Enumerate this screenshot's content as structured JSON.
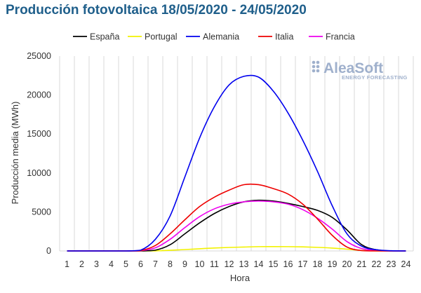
{
  "chart_data": {
    "type": "line",
    "title": "Producción fotovoltaica 18/05/2020 - 24/05/2020",
    "xlabel": "Hora",
    "ylabel": "Producción media (MWh)",
    "x": [
      1,
      2,
      3,
      4,
      5,
      6,
      7,
      8,
      9,
      10,
      11,
      12,
      13,
      14,
      15,
      16,
      17,
      18,
      19,
      20,
      21,
      22,
      23,
      24
    ],
    "ylim": [
      0,
      25000
    ],
    "yticks": [
      0,
      5000,
      10000,
      15000,
      20000,
      25000
    ],
    "grid": "vertical",
    "legend_position": "top",
    "series": [
      {
        "name": "España",
        "color": "#000000",
        "values": [
          0,
          0,
          0,
          0,
          0,
          0,
          100,
          800,
          2200,
          3600,
          4800,
          5700,
          6300,
          6500,
          6400,
          6100,
          5700,
          5200,
          4300,
          2700,
          800,
          150,
          0,
          0
        ]
      },
      {
        "name": "Portugal",
        "color": "#f2f200",
        "values": [
          0,
          0,
          0,
          0,
          0,
          0,
          10,
          80,
          180,
          280,
          380,
          450,
          500,
          550,
          560,
          550,
          520,
          460,
          370,
          230,
          60,
          10,
          0,
          0
        ]
      },
      {
        "name": "Alemania",
        "color": "#0000ee",
        "values": [
          0,
          0,
          0,
          0,
          0,
          100,
          1500,
          4500,
          9500,
          14500,
          18500,
          21300,
          22400,
          22300,
          20500,
          17700,
          14200,
          10200,
          5800,
          2200,
          600,
          150,
          30,
          0
        ]
      },
      {
        "name": "Italia",
        "color": "#ee0000",
        "values": [
          0,
          0,
          0,
          0,
          0,
          50,
          700,
          2200,
          4000,
          5700,
          6900,
          7800,
          8500,
          8500,
          8000,
          7300,
          6000,
          4100,
          2000,
          500,
          50,
          0,
          0,
          0
        ]
      },
      {
        "name": "Francia",
        "color": "#ee00ee",
        "values": [
          0,
          0,
          0,
          0,
          0,
          30,
          400,
          1500,
          3000,
          4400,
          5400,
          6000,
          6300,
          6400,
          6300,
          6000,
          5300,
          4200,
          2800,
          1200,
          300,
          50,
          0,
          0
        ]
      }
    ]
  },
  "logo": {
    "name": "AleaSoft",
    "tagline": "ENERGY FORECASTING"
  }
}
